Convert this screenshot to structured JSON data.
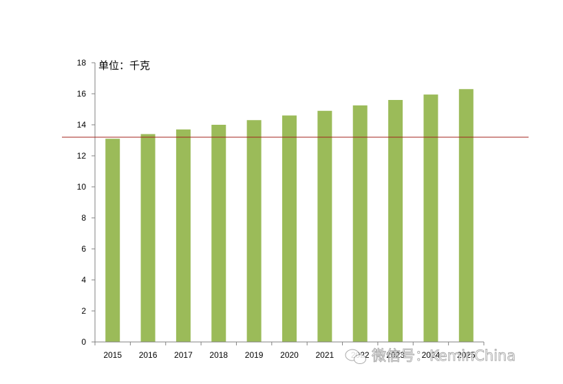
{
  "chart_data": {
    "type": "bar",
    "categories": [
      "2015",
      "2016",
      "2017",
      "2018",
      "2019",
      "2020",
      "2021",
      "2022",
      "2023",
      "2024",
      "2025"
    ],
    "values": [
      13.1,
      13.4,
      13.7,
      14.0,
      14.3,
      14.6,
      14.9,
      15.25,
      15.6,
      15.95,
      16.3
    ],
    "title": "",
    "unit_label": "单位：千克",
    "xlabel": "",
    "ylabel": "",
    "ylim": [
      0,
      18
    ],
    "yticks": [
      0,
      2,
      4,
      6,
      8,
      10,
      12,
      14,
      16,
      18
    ],
    "reference_line": 13.2,
    "grid": false,
    "legend": "none",
    "colors": {
      "bar": "#9bbb59",
      "reference_line": "#a0201a",
      "axis": "#808080"
    }
  },
  "watermark": {
    "text": "微信号：KeminChina",
    "icon": "wechat-icon"
  }
}
